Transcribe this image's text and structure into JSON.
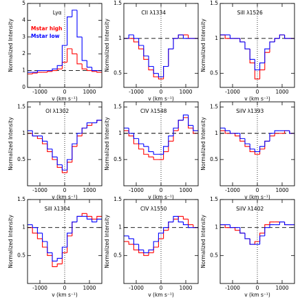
{
  "chart_data": [
    {
      "type": "line",
      "drawstyle": "steps-mid",
      "title": "Lyα",
      "xlabel": "v (km s⁻¹)",
      "ylabel": "Normalized Intensity",
      "legend": true,
      "legend_position": "upper-left",
      "x": [
        -1400,
        -1200,
        -1000,
        -800,
        -600,
        -400,
        -200,
        0,
        200,
        400,
        600,
        800,
        1000,
        1200,
        1400
      ],
      "series": [
        {
          "name": "Mstar high",
          "color": "#ff0000",
          "values": [
            0.8,
            0.85,
            0.9,
            0.9,
            0.95,
            1.0,
            1.1,
            1.5,
            2.3,
            2.0,
            1.4,
            1.1,
            1.0,
            0.95,
            0.9
          ]
        },
        {
          "name": "Mstar low",
          "color": "#0000ff",
          "values": [
            0.9,
            0.9,
            1.0,
            1.0,
            1.0,
            1.1,
            1.3,
            2.5,
            4.2,
            4.6,
            3.0,
            1.6,
            1.2,
            1.0,
            1.0
          ]
        }
      ],
      "xlim": [
        -1500,
        1500
      ],
      "xticks": [
        -1000,
        0,
        1000
      ],
      "ylim": [
        0,
        5
      ],
      "yticks": [
        0,
        1,
        2,
        3,
        4,
        5
      ],
      "hline": 1,
      "vline": 0
    },
    {
      "type": "line",
      "drawstyle": "steps-mid",
      "title": "CII λ1334",
      "xlabel": "v (km s⁻¹)",
      "ylabel": "Normalized Intensity",
      "x": [
        -1400,
        -1200,
        -1000,
        -800,
        -600,
        -400,
        -200,
        0,
        200,
        400,
        600,
        800,
        1000,
        1200,
        1400
      ],
      "series": [
        {
          "color": "#ff0000",
          "values": [
            1.0,
            1.0,
            0.95,
            0.85,
            0.7,
            0.55,
            0.45,
            0.42,
            0.6,
            0.85,
            1.0,
            1.05,
            1.05,
            1.0,
            1.0
          ]
        },
        {
          "color": "#0000ff",
          "values": [
            1.0,
            1.05,
            1.0,
            0.9,
            0.75,
            0.6,
            0.5,
            0.45,
            0.6,
            0.85,
            1.0,
            1.05,
            1.0,
            1.0,
            1.0
          ]
        }
      ],
      "xlim": [
        -1500,
        1500
      ],
      "xticks": [
        -1000,
        0,
        1000
      ],
      "ylim": [
        0.3,
        1.5
      ],
      "yticks": [
        0.5,
        1,
        1.5
      ],
      "hline": 1,
      "vline": 0
    },
    {
      "type": "line",
      "drawstyle": "steps-mid",
      "title": "SiII λ1526",
      "xlabel": "v (km s⁻¹)",
      "ylabel": "Normalized Intensity",
      "x": [
        -1400,
        -1200,
        -1000,
        -800,
        -600,
        -400,
        -200,
        0,
        200,
        400,
        600,
        800,
        1000,
        1200,
        1400
      ],
      "series": [
        {
          "color": "#ff0000",
          "values": [
            1.05,
            1.0,
            1.0,
            1.0,
            0.95,
            0.85,
            0.65,
            0.42,
            0.55,
            0.8,
            0.95,
            1.0,
            1.05,
            1.0,
            1.0
          ]
        },
        {
          "color": "#0000ff",
          "values": [
            1.05,
            1.05,
            1.0,
            1.0,
            0.95,
            0.85,
            0.7,
            0.55,
            0.65,
            0.85,
            0.95,
            1.0,
            1.05,
            1.0,
            1.0
          ]
        }
      ],
      "xlim": [
        -1500,
        1500
      ],
      "xticks": [
        -1000,
        0,
        1000
      ],
      "ylim": [
        0.3,
        1.5
      ],
      "yticks": [
        0.5,
        1,
        1.5
      ],
      "hline": 1,
      "vline": 0
    },
    {
      "type": "line",
      "drawstyle": "steps-mid",
      "title": "OI λ1302",
      "xlabel": "v (km s⁻¹)",
      "ylabel": "Normalized Intensity",
      "x": [
        -1400,
        -1200,
        -1000,
        -800,
        -600,
        -400,
        -200,
        0,
        200,
        400,
        600,
        800,
        1000,
        1200,
        1400
      ],
      "series": [
        {
          "color": "#ff0000",
          "values": [
            1.0,
            0.95,
            0.9,
            0.8,
            0.65,
            0.5,
            0.35,
            0.25,
            0.45,
            0.75,
            0.95,
            1.1,
            1.15,
            1.2,
            1.25
          ]
        },
        {
          "color": "#0000ff",
          "values": [
            1.05,
            0.95,
            0.95,
            0.85,
            0.7,
            0.55,
            0.4,
            0.3,
            0.5,
            0.8,
            1.0,
            1.1,
            1.2,
            1.2,
            1.25
          ]
        }
      ],
      "xlim": [
        -1500,
        1500
      ],
      "xticks": [
        -1000,
        0,
        1000
      ],
      "ylim": [
        0,
        1.6
      ],
      "yticks": [
        0.5,
        1,
        1.5
      ],
      "hline": 1,
      "vline": 0
    },
    {
      "type": "line",
      "drawstyle": "steps-mid",
      "title": "CIV λ1548",
      "xlabel": "v (km s⁻¹)",
      "ylabel": "Normalized Intensity",
      "x": [
        -1400,
        -1200,
        -1000,
        -800,
        -600,
        -400,
        -200,
        0,
        200,
        400,
        600,
        800,
        1000,
        1200,
        1400
      ],
      "series": [
        {
          "color": "#ff0000",
          "values": [
            1.05,
            0.95,
            0.8,
            0.7,
            0.6,
            0.55,
            0.5,
            0.5,
            0.65,
            0.85,
            1.05,
            1.25,
            1.3,
            1.1,
            1.0
          ]
        },
        {
          "color": "#0000ff",
          "values": [
            1.1,
            1.0,
            0.9,
            0.8,
            0.75,
            0.65,
            0.6,
            0.6,
            0.75,
            0.95,
            1.1,
            1.25,
            1.35,
            1.15,
            1.05
          ]
        }
      ],
      "xlim": [
        -1500,
        1500
      ],
      "xticks": [
        -1000,
        0,
        1000
      ],
      "ylim": [
        0,
        1.6
      ],
      "yticks": [
        0.5,
        1,
        1.5
      ],
      "hline": 1,
      "vline": 0
    },
    {
      "type": "line",
      "drawstyle": "steps-mid",
      "title": "SiIV λ1393",
      "xlabel": "v (km s⁻¹)",
      "ylabel": "Normalized Intensity",
      "x": [
        -1400,
        -1200,
        -1000,
        -800,
        -600,
        -400,
        -200,
        0,
        200,
        400,
        600,
        800,
        1000,
        1200,
        1400
      ],
      "series": [
        {
          "color": "#ff0000",
          "values": [
            1.05,
            1.0,
            1.0,
            0.95,
            0.85,
            0.75,
            0.65,
            0.6,
            0.7,
            0.85,
            0.95,
            1.0,
            1.0,
            1.05,
            1.0
          ]
        },
        {
          "color": "#0000ff",
          "values": [
            1.1,
            1.05,
            1.0,
            1.0,
            0.9,
            0.8,
            0.7,
            0.65,
            0.75,
            0.85,
            1.0,
            1.05,
            1.05,
            1.05,
            1.0
          ]
        }
      ],
      "xlim": [
        -1500,
        1500
      ],
      "xticks": [
        -1000,
        0,
        1000
      ],
      "ylim": [
        0,
        1.6
      ],
      "yticks": [
        0.5,
        1,
        1.5
      ],
      "hline": 1,
      "vline": 0
    },
    {
      "type": "line",
      "drawstyle": "steps-mid",
      "title": "SiII λ1304",
      "xlabel": "v (km s⁻¹)",
      "ylabel": "Normalized Intensity",
      "x": [
        -1400,
        -1200,
        -1000,
        -800,
        -600,
        -400,
        -200,
        0,
        200,
        400,
        600,
        800,
        1000,
        1200,
        1400
      ],
      "series": [
        {
          "color": "#ff0000",
          "values": [
            1.0,
            0.9,
            0.8,
            0.65,
            0.5,
            0.3,
            0.35,
            0.55,
            0.85,
            1.1,
            1.2,
            1.25,
            1.2,
            1.15,
            1.2
          ]
        },
        {
          "color": "#0000ff",
          "values": [
            1.05,
            1.0,
            0.9,
            0.75,
            0.55,
            0.4,
            0.45,
            0.65,
            0.9,
            1.1,
            1.2,
            1.2,
            1.15,
            1.1,
            1.15
          ]
        }
      ],
      "xlim": [
        -1500,
        1500
      ],
      "xticks": [
        -1000,
        0,
        1000
      ],
      "ylim": [
        0,
        1.5
      ],
      "yticks": [
        0.5,
        1,
        1.5
      ],
      "hline": 1,
      "vline": 0
    },
    {
      "type": "line",
      "drawstyle": "steps-mid",
      "title": "CIV λ1550",
      "xlabel": "v (km s⁻¹)",
      "ylabel": "Normalized Intensity",
      "x": [
        -1400,
        -1200,
        -1000,
        -800,
        -600,
        -400,
        -200,
        0,
        200,
        400,
        600,
        800,
        1000,
        1200,
        1400
      ],
      "series": [
        {
          "color": "#ff0000",
          "values": [
            0.75,
            0.7,
            0.6,
            0.55,
            0.5,
            0.55,
            0.65,
            0.8,
            0.95,
            1.1,
            1.15,
            1.2,
            1.15,
            1.05,
            1.0
          ]
        },
        {
          "color": "#0000ff",
          "values": [
            0.85,
            0.8,
            0.7,
            0.6,
            0.55,
            0.6,
            0.75,
            0.9,
            1.0,
            1.1,
            1.2,
            1.1,
            1.05,
            1.0,
            1.0
          ]
        }
      ],
      "xlim": [
        -1500,
        1500
      ],
      "xticks": [
        -1000,
        0,
        1000
      ],
      "ylim": [
        0,
        1.5
      ],
      "yticks": [
        0.5,
        1,
        1.5
      ],
      "hline": 1,
      "vline": 0
    },
    {
      "type": "line",
      "drawstyle": "steps-mid",
      "title": "SiIV λ1402",
      "xlabel": "v (km s⁻¹)",
      "ylabel": "Normalized Intensity",
      "x": [
        -1400,
        -1200,
        -1000,
        -800,
        -600,
        -400,
        -200,
        0,
        200,
        400,
        600,
        800,
        1000,
        1200,
        1400
      ],
      "series": [
        {
          "color": "#ff0000",
          "values": [
            1.05,
            1.0,
            1.0,
            0.95,
            0.9,
            0.8,
            0.7,
            0.75,
            0.9,
            1.05,
            1.1,
            1.1,
            1.1,
            1.05,
            1.05
          ]
        },
        {
          "color": "#0000ff",
          "values": [
            1.05,
            1.05,
            1.0,
            1.0,
            0.9,
            0.8,
            0.7,
            0.7,
            0.85,
            1.0,
            1.05,
            1.05,
            1.1,
            1.05,
            1.05
          ]
        }
      ],
      "xlim": [
        -1500,
        1500
      ],
      "xticks": [
        -1000,
        0,
        1000
      ],
      "ylim": [
        0,
        1.5
      ],
      "yticks": [
        0.5,
        1,
        1.5
      ],
      "hline": 1,
      "vline": 0
    }
  ]
}
